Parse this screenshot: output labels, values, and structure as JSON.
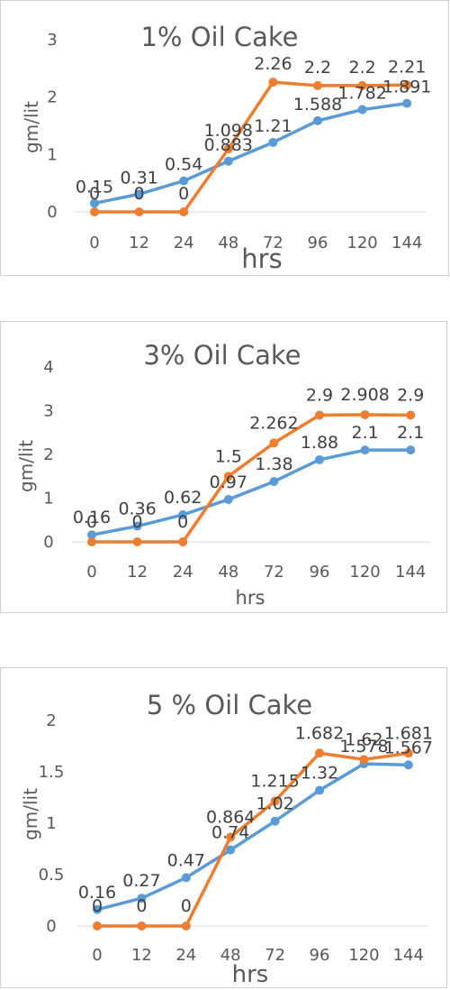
{
  "colors": {
    "series_a": "#5b9bd5",
    "series_b": "#ed7d31",
    "text": "#595959",
    "axis": "#d9d9d9"
  },
  "chart_data": [
    {
      "type": "line",
      "title": "1% Oil Cake",
      "xlabel": "hrs",
      "ylabel": "gm/lit",
      "categories": [
        "0",
        "12",
        "24",
        "48",
        "72",
        "96",
        "120",
        "144"
      ],
      "ylim": [
        0,
        3
      ],
      "yticks": [
        0,
        1,
        2,
        3
      ],
      "grid": false,
      "series": [
        {
          "values": [
            0.15,
            0.31,
            0.54,
            0.883,
            1.21,
            1.588,
            1.782,
            1.891
          ],
          "labels": [
            "0.15",
            "0.31",
            "0.54",
            "0.883",
            "1.21",
            "1.588",
            "1.782",
            "1.891"
          ]
        },
        {
          "values": [
            0,
            0,
            0,
            1.098,
            2.26,
            2.2,
            2.2,
            2.21
          ],
          "labels": [
            "0",
            "0",
            "0",
            "1.098",
            "2.26",
            "2.2",
            "2.2",
            "2.21"
          ]
        }
      ]
    },
    {
      "type": "line",
      "title": "3% Oil Cake",
      "xlabel": "hrs",
      "ylabel": "gm/lit",
      "categories": [
        "0",
        "12",
        "24",
        "48",
        "72",
        "96",
        "120",
        "144"
      ],
      "ylim": [
        0,
        4
      ],
      "yticks": [
        0,
        1,
        2,
        3,
        4
      ],
      "grid": false,
      "series": [
        {
          "values": [
            0.16,
            0.36,
            0.62,
            0.97,
            1.38,
            1.88,
            2.1,
            2.1
          ],
          "labels": [
            "0.16",
            "0.36",
            "0.62",
            "0.97",
            "1.38",
            "1.88",
            "2.1",
            "2.1"
          ]
        },
        {
          "values": [
            0,
            0,
            0,
            1.5,
            2.262,
            2.9,
            2.908,
            2.9
          ],
          "labels": [
            "0",
            "0",
            "0",
            "1.5",
            "2.262",
            "2.9",
            "2.908",
            "2.9"
          ]
        }
      ]
    },
    {
      "type": "line",
      "title": "5 % Oil Cake",
      "xlabel": "hrs",
      "ylabel": "gm/lit",
      "categories": [
        "0",
        "12",
        "24",
        "48",
        "72",
        "96",
        "120",
        "144"
      ],
      "ylim": [
        0,
        2
      ],
      "yticks": [
        0,
        0.5,
        1,
        1.5,
        2
      ],
      "grid": false,
      "series": [
        {
          "values": [
            0.16,
            0.27,
            0.47,
            0.74,
            1.02,
            1.32,
            1.578,
            1.567
          ],
          "labels": [
            "0.16",
            "0.27",
            "0.47",
            "0.74",
            "1.02",
            "1.32",
            "1.578",
            "1.567"
          ]
        },
        {
          "values": [
            0,
            0,
            0,
            0.864,
            1.215,
            1.682,
            1.62,
            1.681
          ],
          "labels": [
            "0",
            "0",
            "0",
            "0.864",
            "1.215",
            "1.682",
            "1.62",
            "1.681"
          ]
        }
      ]
    }
  ]
}
